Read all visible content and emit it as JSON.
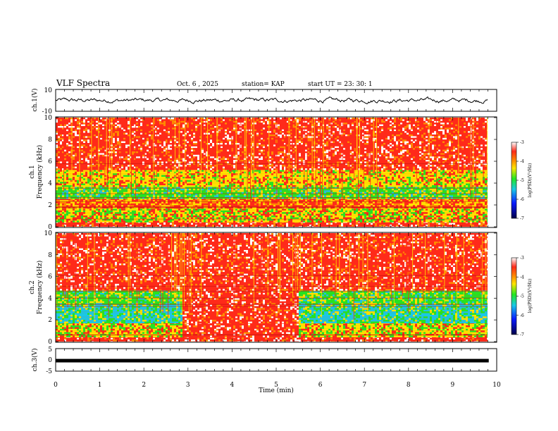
{
  "header": {
    "title": "VLF Spectra",
    "date": "Oct. 6 , 2025",
    "station": "station= KAP",
    "start_ut": "start UT = 23: 30: 1"
  },
  "colors": {
    "red": "#ff2a1a",
    "orange": "#ff8c00",
    "yellow": "#ffe400",
    "green": "#22e622",
    "cyan": "#19c8e6",
    "blue": "#0a1aff",
    "dark_blue": "#00004a",
    "white": "#ffffff",
    "trace": "#000000"
  },
  "chart_data": [
    {
      "type": "line",
      "name": "waveform-ch1",
      "ylabel": "ch.1(V)",
      "ylim": [
        -10,
        10
      ],
      "ytick_labels": [
        "10",
        "-10"
      ],
      "xlim": [
        0,
        10
      ],
      "trace_approx_range_V": [
        -6,
        4
      ]
    },
    {
      "type": "heatmap",
      "name": "spectrogram-ch1",
      "ylabel_line1": "ch.1",
      "ylabel_line2": "Frequency (kHz)",
      "ylim": [
        0,
        10
      ],
      "ytick_labels": [
        "0",
        "2",
        "4",
        "6",
        "8",
        "10"
      ],
      "xlim": [
        0,
        10
      ],
      "x_end_min": 9.82,
      "bands": [
        {
          "from_khz": 0,
          "to_khz": 0.5,
          "level": "red"
        },
        {
          "from_khz": 0.5,
          "to_khz": 1.8,
          "level": "yellow-green"
        },
        {
          "from_khz": 1.8,
          "to_khz": 2.6,
          "level": "orange-red"
        },
        {
          "from_khz": 2.6,
          "to_khz": 3.8,
          "level": "green"
        },
        {
          "from_khz": 3.8,
          "to_khz": 5.2,
          "level": "yellow"
        },
        {
          "from_khz": 5.2,
          "to_khz": 10,
          "level": "red"
        }
      ],
      "colorbar": {
        "min": -7,
        "max": -3,
        "tick_labels": [
          "-3",
          "-4",
          "-5",
          "-6",
          "-7"
        ],
        "label": "log(PSD)(V²/Hz)"
      }
    },
    {
      "type": "heatmap",
      "name": "spectrogram-ch2",
      "ylabel_line1": "ch.2",
      "ylabel_line2": "Frequency (kHz)",
      "ylim": [
        0,
        10
      ],
      "ytick_labels": [
        "0",
        "2",
        "4",
        "6",
        "8",
        "10"
      ],
      "xlim": [
        0,
        10
      ],
      "x_end_min": 9.82,
      "bands": [
        {
          "from_khz": 0,
          "to_khz": 0.5,
          "level": "red"
        },
        {
          "from_khz": 0.5,
          "to_khz": 1.8,
          "level": "yellow-green"
        },
        {
          "from_khz": 1.8,
          "to_khz": 3.4,
          "level": "cyan"
        },
        {
          "from_khz": 3.4,
          "to_khz": 4.8,
          "level": "green"
        },
        {
          "from_khz": 4.8,
          "to_khz": 10,
          "level": "red"
        }
      ],
      "noise_burst_minutes": [
        2.85,
        5.5
      ],
      "colorbar": {
        "min": -7,
        "max": -3,
        "tick_labels": [
          "-3",
          "-4",
          "-5",
          "-6",
          "-7"
        ],
        "label": "log(PSD)(V²/Hz)"
      }
    },
    {
      "type": "line",
      "name": "waveform-ch3",
      "ylabel": "ch.3(V)",
      "ylim": [
        -5,
        5
      ],
      "ytick_labels": [
        "5",
        "0",
        "-5"
      ],
      "xlim": [
        0,
        10
      ],
      "trace_level_V": -0.5,
      "xlabel": "Time (min)",
      "xtick_labels": [
        "0",
        "1",
        "2",
        "3",
        "4",
        "5",
        "6",
        "7",
        "8",
        "9",
        "10"
      ]
    }
  ]
}
